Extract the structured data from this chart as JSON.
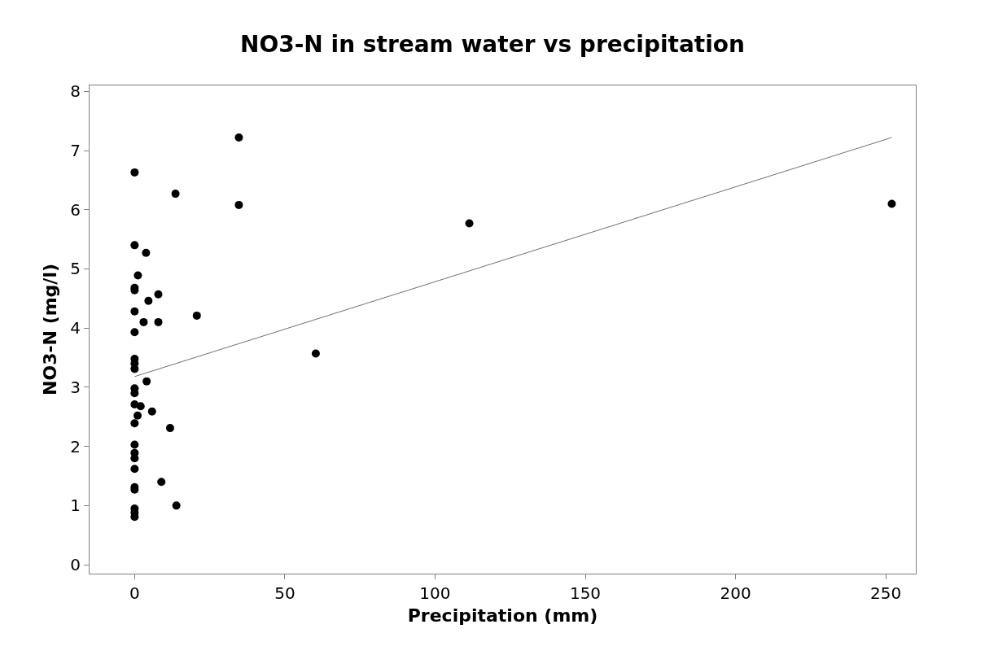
{
  "chart_data": {
    "type": "scatter",
    "title": "NO3-N in stream water vs precipitation",
    "xlabel": "Precipitation (mm)",
    "ylabel": "NO3-N (mg/l)",
    "xlim": [
      -15,
      260
    ],
    "xticks": [
      0,
      50,
      100,
      150,
      200,
      250
    ],
    "ylim": [
      -0.15,
      8.1
    ],
    "yticks": [
      0,
      1,
      2,
      3,
      4,
      5,
      6,
      7,
      8
    ],
    "series": [
      {
        "color": "#000000",
        "marker": "circle",
        "x": [
          0,
          34.7,
          13.6,
          34.7,
          252,
          111.4,
          0,
          3.8,
          1.1,
          0,
          0,
          7.9,
          4.6,
          0,
          7.9,
          3.0,
          20.7,
          0,
          60.3,
          0,
          0,
          0,
          4,
          0,
          0,
          0,
          2,
          5.8,
          1,
          0,
          11.8,
          0,
          0,
          0,
          0,
          0,
          0,
          8.9,
          13.9,
          0,
          0,
          0
        ],
        "values": [
          6.63,
          7.22,
          6.27,
          6.08,
          6.1,
          5.77,
          5.4,
          5.27,
          4.89,
          4.68,
          4.64,
          4.57,
          4.46,
          4.28,
          4.1,
          4.1,
          4.21,
          3.93,
          3.57,
          3.48,
          3.4,
          3.31,
          3.1,
          2.98,
          2.9,
          2.71,
          2.68,
          2.59,
          2.52,
          2.39,
          2.31,
          2.03,
          1.89,
          1.8,
          1.62,
          1.31,
          1.27,
          1.4,
          1.0,
          0.95,
          0.88,
          0.81
        ]
      },
      {
        "type": "line",
        "color": "#707070",
        "marker": "none",
        "line_style": "solid",
        "x": [
          0,
          252
        ],
        "values": [
          3.18,
          7.22
        ]
      }
    ]
  }
}
